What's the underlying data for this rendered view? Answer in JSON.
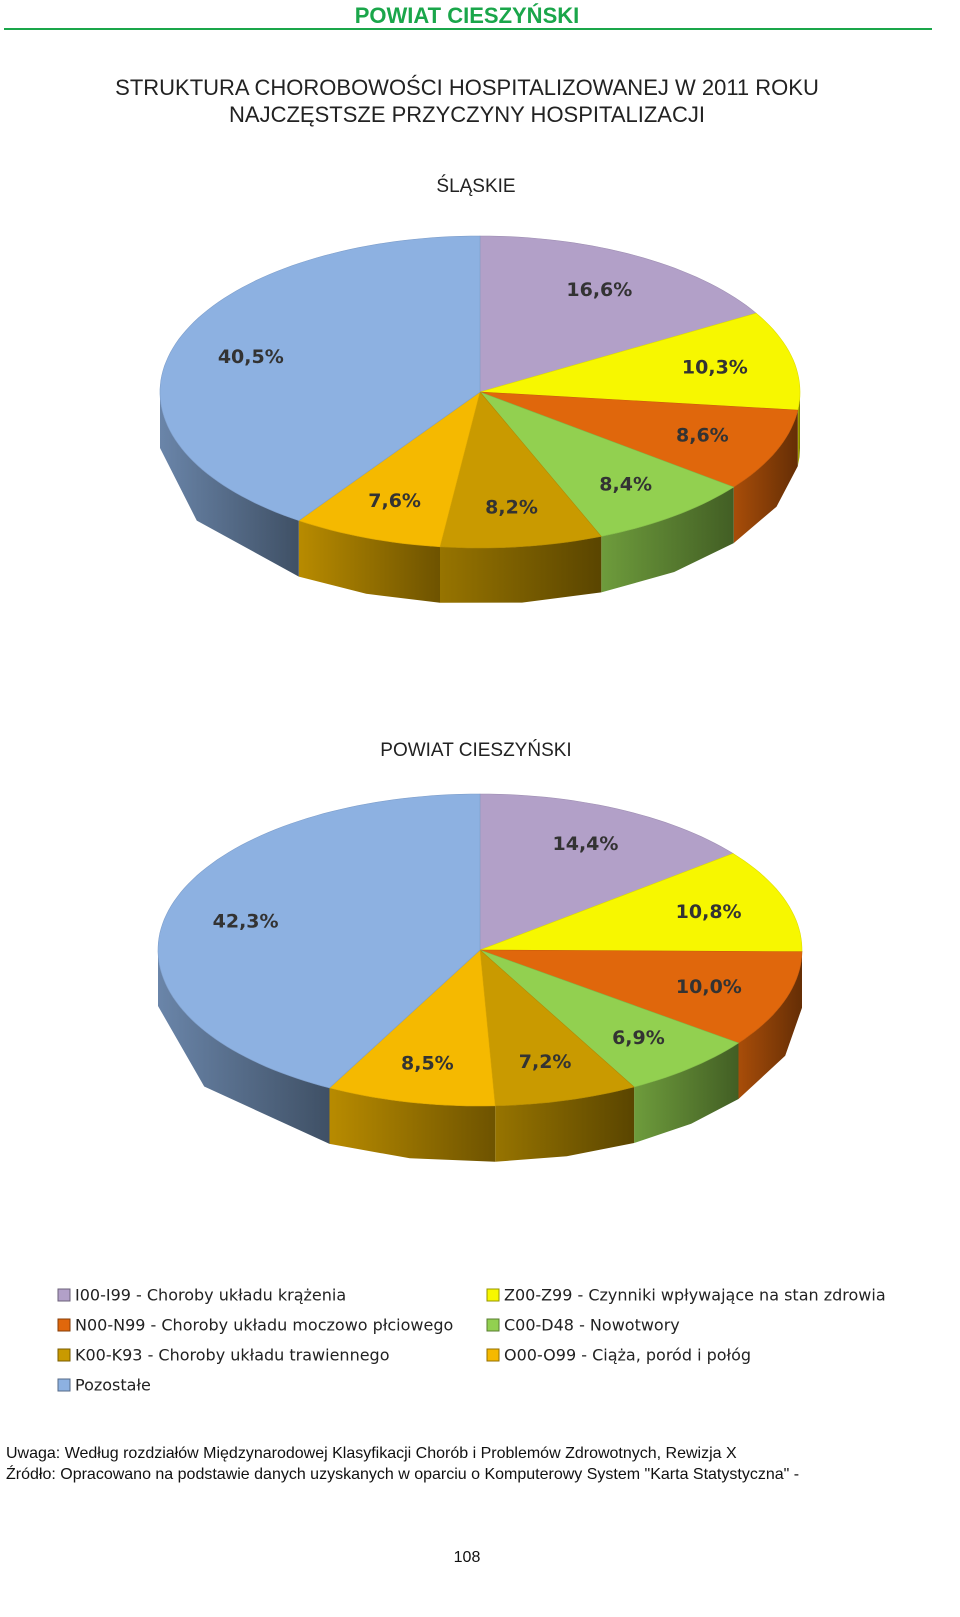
{
  "header": {
    "title": "POWIAT CIESZYŃSKI"
  },
  "title": [
    "STRUKTURA CHOROBOWOŚCI HOSPITALIZOWANEJ W 2011 ROKU",
    "NAJCZĘSTSZE PRZYCZYNY HOSPITALIZACJI"
  ],
  "chart_data": [
    {
      "type": "pie",
      "title": "ŚLĄSKIE",
      "values": [
        16.6,
        10.3,
        8.6,
        8.4,
        8.2,
        7.6,
        40.5
      ],
      "value_labels": [
        "16,6%",
        "10,3%",
        "8,6%",
        "8,4%",
        "8,2%",
        "7,6%",
        "40,5%"
      ],
      "colors": [
        "#b2a0c8",
        "#f7f700",
        "#e0670c",
        "#92d050",
        "#c99a00",
        "#f5b900",
        "#8db1e1"
      ]
    },
    {
      "type": "pie",
      "title": "POWIAT CIESZYŃSKI",
      "values": [
        14.4,
        10.8,
        10.0,
        6.9,
        7.2,
        8.5,
        42.3
      ],
      "value_labels": [
        "14,4%",
        "10,8%",
        "10,0%",
        "6,9%",
        "7,2%",
        "8,5%",
        "42,3%"
      ],
      "colors": [
        "#b2a0c8",
        "#f7f700",
        "#e0670c",
        "#92d050",
        "#c99a00",
        "#f5b900",
        "#8db1e1"
      ]
    }
  ],
  "legend": [
    {
      "name": "I00-I99 - Choroby układu krążenia",
      "color": "#b2a0c8"
    },
    {
      "name": "N00-N99 -  Choroby układu moczowo płciowego",
      "color": "#e0670c"
    },
    {
      "name": "K00-K93 - Choroby układu trawiennego",
      "color": "#c99a00"
    },
    {
      "name": "Pozostałe",
      "color": "#8db1e1"
    },
    {
      "name": "Z00-Z99 -  Czynniki wpływające  na stan zdrowia",
      "color": "#f7f700"
    },
    {
      "name": "C00-D48 -  Nowotwory",
      "color": "#92d050"
    },
    {
      "name": "O00-O99 - Ciąża, poród i połóg",
      "color": "#f5b900"
    }
  ],
  "notes": [
    "Uwaga: Według rozdziałów Międzynarodowej Klasyfikacji Chorób i Problemów Zdrowotnych, Rewizja X",
    "Źródło: Opracowano na podstawie danych uzyskanych w oparciu o Komputerowy System \"Karta Statystyczna\" -"
  ],
  "page_number": "108"
}
